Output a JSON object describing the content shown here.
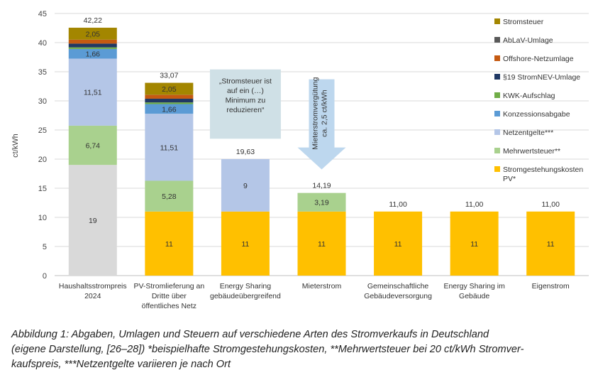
{
  "chart_data": {
    "type": "bar",
    "stacked": true,
    "ylabel": "ct/kWh",
    "ylim": [
      0,
      45
    ],
    "yticks": [
      "0",
      "5",
      "10",
      "15",
      "20",
      "25",
      "30",
      "35",
      "40",
      "45"
    ],
    "grid": true,
    "legend_position": "right",
    "categories": [
      [
        "Haushaltsstrompreis",
        "2024"
      ],
      [
        "PV-Stromlieferung an",
        "Dritte über",
        "öffentliches Netz"
      ],
      [
        "Energy Sharing",
        "gebäudeübergreifend"
      ],
      [
        "Mieterstrom"
      ],
      [
        "Gemeinschaftliche",
        "Gebäudeversorgung"
      ],
      [
        "Energy Sharing im",
        "Gebäude"
      ],
      [
        "Eigenstrom"
      ]
    ],
    "series": [
      {
        "name": "Stromgestehungskosten PV*",
        "legend_lines": [
          "Stromgestehungskosten",
          "PV*"
        ],
        "color": "#FFC000",
        "values": [
          0,
          11,
          11,
          11,
          11,
          11,
          11
        ],
        "labels": [
          "",
          "11",
          "11",
          "11",
          "11",
          "11",
          "11"
        ]
      },
      {
        "name": "Mehrwertsteuer**",
        "color": "#A9D18E",
        "values": [
          6.74,
          5.28,
          0,
          3.19,
          0,
          0,
          0
        ],
        "labels": [
          "6,74",
          "5,28",
          "",
          "3,19",
          "",
          "",
          ""
        ]
      },
      {
        "name": "Netzentgelte***",
        "color": "#B4C6E7",
        "values": [
          11.51,
          11.51,
          9,
          0,
          0,
          0,
          0
        ],
        "labels": [
          "11,51",
          "11,51",
          "9",
          "",
          "",
          "",
          ""
        ]
      },
      {
        "name": "Konzessionsabgabe",
        "color": "#5B9BD5",
        "values": [
          1.66,
          1.66,
          0,
          0,
          0,
          0,
          0
        ],
        "labels": [
          "1,66",
          "1,66",
          "",
          "",
          "",
          "",
          ""
        ]
      },
      {
        "name": "KWK-Aufschlag",
        "color": "#70AD47",
        "values": [
          0.28,
          0.28,
          0,
          0,
          0,
          0,
          0
        ],
        "labels": [
          "",
          "",
          "",
          "",
          "",
          "",
          ""
        ]
      },
      {
        "name": "§19 StromNEV-Umlage",
        "color": "#203864",
        "values": [
          0.64,
          0.64,
          0,
          0,
          0,
          0,
          0
        ],
        "labels": [
          "",
          "",
          "",
          "",
          "",
          "",
          ""
        ]
      },
      {
        "name": "Offshore-Netzumlage",
        "color": "#C55A11",
        "values": [
          0.66,
          0.66,
          0,
          0,
          0,
          0,
          0
        ],
        "labels": [
          "",
          "",
          "",
          "",
          "",
          "",
          ""
        ]
      },
      {
        "name": "AbLaV-Umlage",
        "color": "#595959",
        "values": [
          0.02,
          0.02,
          0,
          0,
          0,
          0,
          0
        ],
        "labels": [
          "",
          "",
          "",
          "",
          "",
          "",
          ""
        ]
      },
      {
        "name": "Stromsteuer",
        "color": "#A38600",
        "values": [
          2.05,
          2.05,
          0,
          0,
          0,
          0,
          0
        ],
        "labels": [
          "2,05",
          "2,05",
          "",
          "",
          "",
          "",
          ""
        ]
      },
      {
        "name": "",
        "color": "#D9D9D9",
        "in_legend": false,
        "values": [
          19,
          0,
          0,
          0,
          0,
          0,
          0
        ],
        "labels": [
          "19",
          "",
          "",
          "",
          "",
          "",
          ""
        ]
      }
    ],
    "stack_order": [
      9,
      0,
      1,
      2,
      3,
      4,
      5,
      6,
      7,
      8
    ],
    "totals": [
      "42,22",
      "33,07",
      "19,63",
      "14,19",
      "11,00",
      "11,00",
      "11,00"
    ],
    "annotations": [
      {
        "type": "box",
        "lines": [
          "„Stromsteuer ist",
          "auf ein (…)",
          "Minimum zu",
          "reduzieren“"
        ],
        "color": "#CFE0E6"
      },
      {
        "type": "arrow",
        "lines": [
          "Mieterstromvergütung",
          "ca. 2,5 ct/kWh"
        ],
        "color": "#BDD7EE"
      }
    ]
  },
  "caption": {
    "lines": [
      "Abbildung 1: Abgaben, Umlagen und Steuern auf verschiedene Arten des Stromverkaufs in Deutschland",
      "(eigene Darstellung, [26–28]) *beispielhafte Stromgestehungskosten, **Mehrwertsteuer bei 20 ct/kWh Stromver-",
      "kaufspreis, ***Netzentgelte variieren je nach Ort"
    ]
  }
}
